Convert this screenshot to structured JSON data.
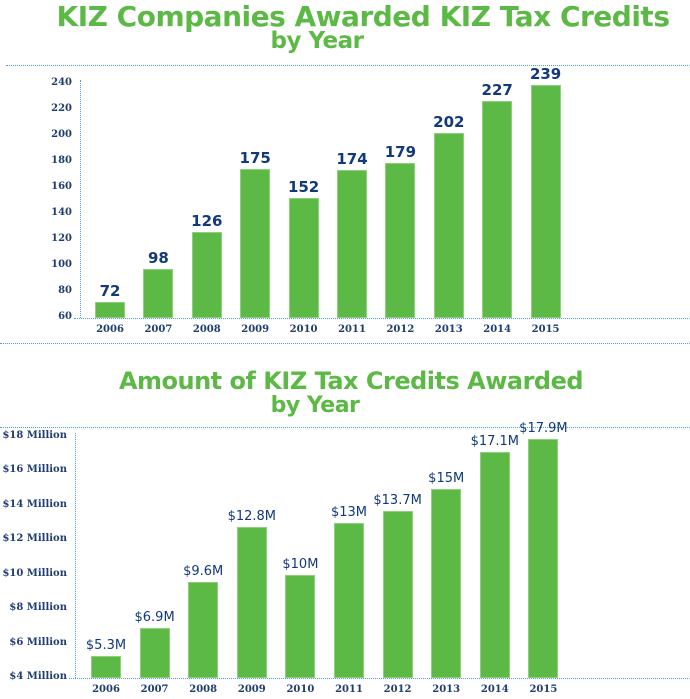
{
  "chart_data": [
    {
      "type": "bar",
      "title": "KIZ Companies Awarded KIZ Tax Credits by Year",
      "title_line1": "KIZ Companies Awarded KIZ Tax Credits",
      "title_line2": "by Year",
      "xlabel": "",
      "ylabel": "",
      "categories": [
        "2006",
        "2007",
        "2008",
        "2009",
        "2010",
        "2011",
        "2012",
        "2013",
        "2014",
        "2015"
      ],
      "values": [
        72,
        98,
        126,
        175,
        152,
        174,
        179,
        202,
        227,
        239
      ],
      "data_labels": [
        "72",
        "98",
        "126",
        "175",
        "152",
        "174",
        "179",
        "202",
        "227",
        "239"
      ],
      "yticks": [
        "60",
        "80",
        "100",
        "120",
        "140",
        "160",
        "180",
        "200",
        "220",
        "240"
      ],
      "ylim": [
        60,
        240
      ],
      "grid": false,
      "legend": null,
      "bar_color": "#5cb946",
      "label_color": "#12397a"
    },
    {
      "type": "bar",
      "title": "Amount of KIZ Tax Credits Awarded by Year",
      "title_line1": "Amount of KIZ Tax Credits Awarded",
      "title_line2": "by Year",
      "xlabel": "",
      "ylabel": "",
      "categories": [
        "2006",
        "2007",
        "2008",
        "2009",
        "2010",
        "2011",
        "2012",
        "2013",
        "2014",
        "2015"
      ],
      "values": [
        5.3,
        6.9,
        9.6,
        12.8,
        10,
        13,
        13.7,
        15,
        17.1,
        17.9
      ],
      "units": "$ Million",
      "data_labels": [
        "$5.3M",
        "$6.9M",
        "$9.6M",
        "$12.8M",
        "$10M",
        "$13M",
        "$13.7M",
        "$15M",
        "$17.1M",
        "$17.9M"
      ],
      "yticks": [
        "$4 Million",
        "$6 Million",
        "$8 Million",
        "$10 Million",
        "$12 Million",
        "$14 Million",
        "$16 Million",
        "$18 Million"
      ],
      "ylim": [
        4,
        18
      ],
      "grid": false,
      "legend": null,
      "bar_color": "#5cb946",
      "label_color": "#12397a"
    }
  ]
}
